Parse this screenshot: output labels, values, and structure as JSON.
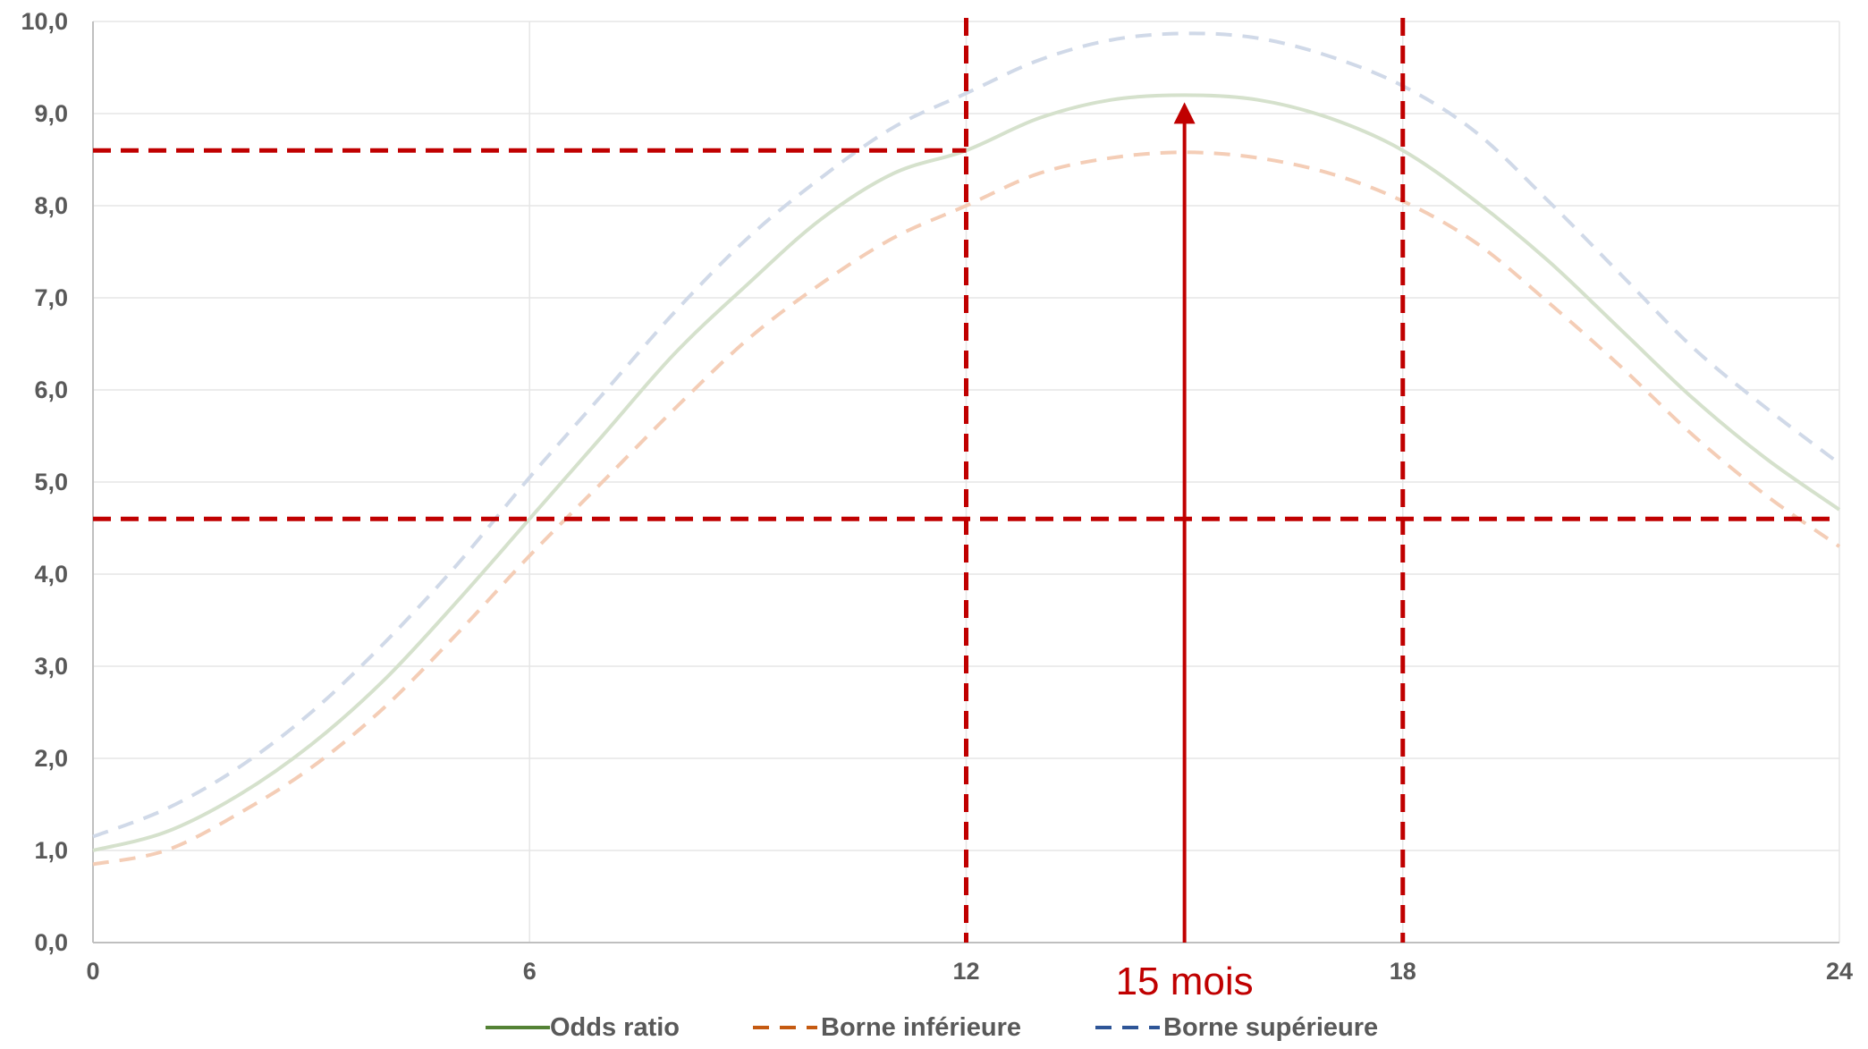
{
  "chart_data": {
    "type": "line",
    "x_range": [
      0,
      24
    ],
    "ylim": [
      0,
      10
    ],
    "x_ticks": [
      0,
      6,
      12,
      18,
      24
    ],
    "y_ticks": [
      0,
      1,
      2,
      3,
      4,
      5,
      6,
      7,
      8,
      9,
      10
    ],
    "x_tick_labels": [
      "0",
      "6",
      "12",
      "18",
      "24"
    ],
    "y_tick_labels": [
      "0,0",
      "1,0",
      "2,0",
      "3,0",
      "4,0",
      "5,0",
      "6,0",
      "7,0",
      "8,0",
      "9,0",
      "10,0"
    ],
    "grid": true,
    "legend_position": "bottom",
    "series": [
      {
        "name": "Odds ratio",
        "style": "solid",
        "color": "#d5e1cc",
        "legend_color": "#548235",
        "points": [
          [
            0,
            1.0
          ],
          [
            1,
            1.2
          ],
          [
            2,
            1.6
          ],
          [
            3,
            2.15
          ],
          [
            4,
            2.85
          ],
          [
            5,
            3.7
          ],
          [
            6,
            4.6
          ],
          [
            7,
            5.5
          ],
          [
            8,
            6.4
          ],
          [
            9,
            7.15
          ],
          [
            10,
            7.85
          ],
          [
            11,
            8.35
          ],
          [
            12,
            8.6
          ],
          [
            13,
            8.95
          ],
          [
            14,
            9.15
          ],
          [
            15,
            9.2
          ],
          [
            16,
            9.15
          ],
          [
            17,
            8.95
          ],
          [
            18,
            8.6
          ],
          [
            19,
            8.05
          ],
          [
            20,
            7.4
          ],
          [
            21,
            6.65
          ],
          [
            22,
            5.9
          ],
          [
            23,
            5.25
          ],
          [
            24,
            4.7
          ]
        ]
      },
      {
        "name": "Borne inférieure",
        "style": "dashed",
        "color": "#f4cdb6",
        "legend_color": "#c55a11",
        "points": [
          [
            0,
            0.85
          ],
          [
            1,
            1.0
          ],
          [
            2,
            1.4
          ],
          [
            3,
            1.9
          ],
          [
            4,
            2.55
          ],
          [
            5,
            3.35
          ],
          [
            6,
            4.2
          ],
          [
            7,
            5.0
          ],
          [
            8,
            5.8
          ],
          [
            9,
            6.55
          ],
          [
            10,
            7.15
          ],
          [
            11,
            7.65
          ],
          [
            12,
            8.0
          ],
          [
            13,
            8.35
          ],
          [
            14,
            8.52
          ],
          [
            15,
            8.58
          ],
          [
            16,
            8.52
          ],
          [
            17,
            8.35
          ],
          [
            18,
            8.05
          ],
          [
            19,
            7.6
          ],
          [
            20,
            6.95
          ],
          [
            21,
            6.25
          ],
          [
            22,
            5.5
          ],
          [
            23,
            4.85
          ],
          [
            24,
            4.3
          ]
        ]
      },
      {
        "name": "Borne supérieure",
        "style": "dashed",
        "color": "#d0d9e8",
        "legend_color": "#2e5597",
        "points": [
          [
            0,
            1.15
          ],
          [
            1,
            1.45
          ],
          [
            2,
            1.9
          ],
          [
            3,
            2.5
          ],
          [
            4,
            3.25
          ],
          [
            5,
            4.1
          ],
          [
            6,
            5.05
          ],
          [
            7,
            5.95
          ],
          [
            8,
            6.85
          ],
          [
            9,
            7.65
          ],
          [
            10,
            8.3
          ],
          [
            11,
            8.85
          ],
          [
            12,
            9.22
          ],
          [
            13,
            9.58
          ],
          [
            14,
            9.8
          ],
          [
            15,
            9.87
          ],
          [
            16,
            9.82
          ],
          [
            17,
            9.62
          ],
          [
            18,
            9.3
          ],
          [
            19,
            8.8
          ],
          [
            20,
            8.05
          ],
          [
            21,
            7.25
          ],
          [
            22,
            6.45
          ],
          [
            23,
            5.8
          ],
          [
            24,
            5.2
          ]
        ]
      }
    ],
    "reference_lines": {
      "color": "#c00000",
      "vertical_x": [
        12,
        18
      ],
      "horizontal_y": [
        8.6,
        4.6
      ],
      "horizontal_y_extents": [
        [
          0,
          12
        ],
        [
          0,
          24
        ]
      ]
    },
    "annotation": {
      "text": "15 mois",
      "x": 15,
      "arrow_to_y": 9.2,
      "color": "#c00000"
    }
  }
}
